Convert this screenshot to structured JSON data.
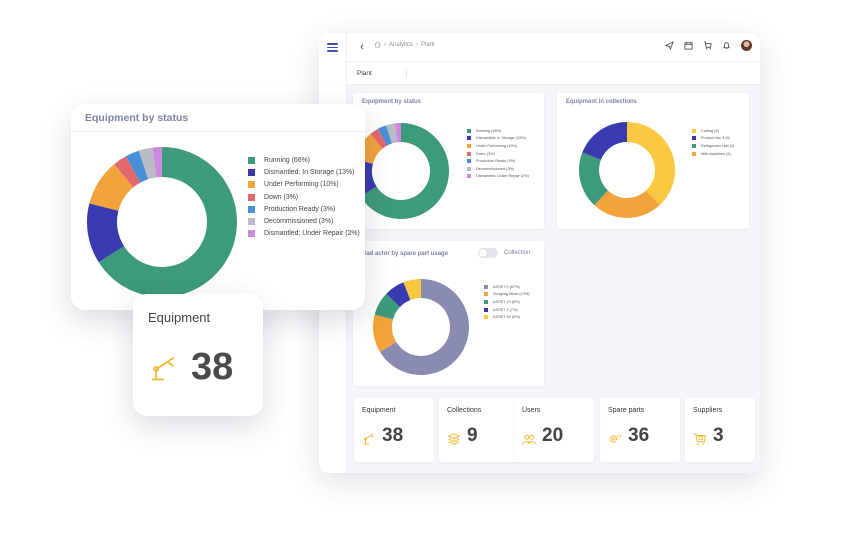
{
  "topbar": {
    "breadcrumb": [
      "Analytics",
      "Plant"
    ],
    "back_icon": "chevron-left-icon",
    "icons": [
      "send-icon",
      "calendar-icon",
      "cart-icon",
      "bell-icon"
    ]
  },
  "plant_tab": "Plant",
  "colors": {
    "green": "#3d9a7b",
    "indigo": "#3a3ab0",
    "orange": "#f3a33c",
    "red": "#e36a6a",
    "blue": "#4a90d9",
    "gray": "#b9bcc6",
    "violet": "#cf87e0",
    "yellow": "#f9c740",
    "slate": "#8a8bb0",
    "accent": "#f5b92e"
  },
  "equipment_by_status": {
    "title": "Equipment by status",
    "chart_data": {
      "type": "pie",
      "title": "Equipment by status",
      "series": [
        {
          "name": "Running",
          "value": 66,
          "color": "#3d9a7b"
        },
        {
          "name": "Dismantled: In Storage",
          "value": 13,
          "color": "#3a3ab0"
        },
        {
          "name": "Under Performing",
          "value": 10,
          "color": "#f3a33c"
        },
        {
          "name": "Down",
          "value": 3,
          "color": "#e36a6a"
        },
        {
          "name": "Production Ready",
          "value": 3,
          "color": "#4a90d9"
        },
        {
          "name": "Decommissioned",
          "value": 3,
          "color": "#b9bcc6"
        },
        {
          "name": "Dismantled: Under Repair",
          "value": 2,
          "color": "#cf87e0"
        }
      ],
      "legend_labels": [
        "Running (66%)",
        "Dismantled: In Storage (13%)",
        "Under Performing (10%)",
        "Down (3%)",
        "Production Ready (3%)",
        "Decommissioned (3%)",
        "Dismantled: Under Repair (2%)"
      ]
    }
  },
  "equipment_in_collections": {
    "title": "Equipment in collections",
    "chart_data": {
      "type": "pie",
      "title": "Equipment in collections",
      "series": [
        {
          "name": "Cutting",
          "value": 8,
          "color": "#f9c740"
        },
        {
          "name": "Product line 3",
          "value": 5,
          "color": "#f3a33c"
        },
        {
          "name": "Refrigerator Hall",
          "value": 4,
          "color": "#3d9a7b"
        },
        {
          "name": "Milk machines",
          "value": 4,
          "color": "#3a3ab0"
        }
      ],
      "legend_labels": [
        "Cutting (8)",
        "Product line 3 (5)",
        "Refrigerator Hall (4)",
        "Milk machines (4)"
      ]
    }
  },
  "bad_actor": {
    "title": "Bad actor by spare part usage",
    "toggle_label": "Collection",
    "chart_data": {
      "type": "pie",
      "title": "Bad actor by spare part usage",
      "series": [
        {
          "name": "ASSET 0",
          "value": 67,
          "color": "#8a8bb0"
        },
        {
          "name": "Scraping Mixer",
          "value": 13,
          "color": "#f3a33c"
        },
        {
          "name": "ASSET 19",
          "value": 8,
          "color": "#3d9a7b"
        },
        {
          "name": "ASSET 3",
          "value": 7,
          "color": "#3a3ab0"
        },
        {
          "name": "ASSET 16",
          "value": 6,
          "color": "#f9c740"
        }
      ],
      "legend_labels": [
        "ASSET 0 (67%)",
        "Scraping Mixer (13%)",
        "ASSET 19 (8%)",
        "ASSET 3 (7%)",
        "ASSET 16 (6%)"
      ]
    }
  },
  "stats": [
    {
      "label": "Equipment",
      "value": "38",
      "icon": "robot-arm-icon"
    },
    {
      "label": "Collections",
      "value": "9",
      "icon": "layers-icon"
    },
    {
      "label": "Users",
      "value": "20",
      "icon": "users-icon"
    },
    {
      "label": "Spare parts",
      "value": "36",
      "icon": "gears-icon"
    },
    {
      "label": "Suppliers",
      "value": "3",
      "icon": "supplier-cart-icon"
    }
  ],
  "float_status": {
    "title": "Equipment by status"
  },
  "float_equipment": {
    "label": "Equipment",
    "value": "38",
    "icon": "robot-arm-icon"
  }
}
